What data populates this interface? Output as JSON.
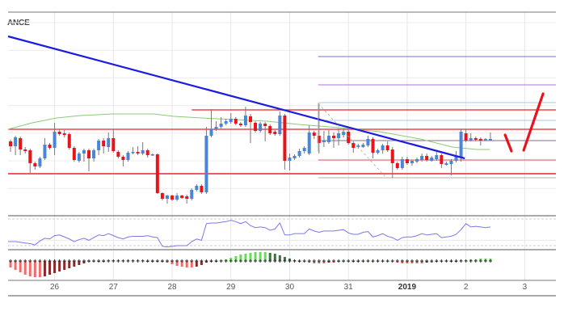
{
  "chart_data": {
    "type": "candlestick",
    "title": "ANCE",
    "grid": true,
    "candle_start": "2018-12-25 06:00",
    "candle_interval_hours": 2,
    "xlim": [
      "2018-12-25 05:00",
      "2019-01-03 12:45"
    ],
    "ylim": [
      35,
      285
    ],
    "colors": {
      "up": "#4a86d8",
      "down": "#e8141b",
      "wick": "#7a7a7a",
      "trendline": "#1c1cdc",
      "level": "#e8242a",
      "ma": "#8cc97a",
      "rsi": "#7b78e8",
      "macd_up_rising": "#66dd55",
      "macd_up_falling": "#2f7d2f",
      "macd_down_falling": "#f26b6b",
      "macd_down_rising": "#8b2a2a"
    },
    "x_ticks": [
      {
        "label": "26",
        "date": "2018-12-26 00:00",
        "bold": false
      },
      {
        "label": "27",
        "date": "2018-12-27 00:00",
        "bold": false
      },
      {
        "label": "28",
        "date": "2018-12-28 00:00",
        "bold": false
      },
      {
        "label": "29",
        "date": "2018-12-29 00:00",
        "bold": false
      },
      {
        "label": "30",
        "date": "2018-12-30 00:00",
        "bold": false
      },
      {
        "label": "31",
        "date": "2018-12-31 00:00",
        "bold": false
      },
      {
        "label": "2019",
        "date": "2019-01-01 00:00",
        "bold": true
      },
      {
        "label": "2",
        "date": "2019-01-02 00:00",
        "bold": false
      },
      {
        "label": "3",
        "date": "2019-01-03 00:00",
        "bold": false
      }
    ],
    "candles_ohlc": [
      [
        125,
        127,
        112,
        119
      ],
      [
        119,
        132,
        108,
        130
      ],
      [
        129,
        131,
        108,
        115
      ],
      [
        115,
        118,
        110,
        113
      ],
      [
        114,
        116,
        85,
        98
      ],
      [
        98,
        100,
        90,
        94
      ],
      [
        94,
        106,
        92,
        104
      ],
      [
        104,
        129,
        102,
        121
      ],
      [
        121,
        123,
        115,
        117
      ],
      [
        117,
        148,
        108,
        137
      ],
      [
        137,
        140,
        132,
        134
      ],
      [
        135,
        139,
        130,
        133
      ],
      [
        134,
        136,
        115,
        117
      ],
      [
        117,
        119,
        100,
        102
      ],
      [
        101,
        112,
        99,
        110
      ],
      [
        110,
        116,
        100,
        114
      ],
      [
        114,
        116,
        88,
        104
      ],
      [
        104,
        116,
        100,
        114
      ],
      [
        114,
        128,
        108,
        126
      ],
      [
        126,
        129,
        110,
        119
      ],
      [
        118,
        136,
        112,
        129
      ],
      [
        129,
        140,
        111,
        113
      ],
      [
        112,
        114,
        104,
        106
      ],
      [
        106,
        108,
        94,
        102
      ],
      [
        102,
        113,
        100,
        111
      ],
      [
        111,
        118,
        109,
        112
      ],
      [
        112,
        119,
        108,
        110
      ],
      [
        110,
        124,
        108,
        114
      ],
      [
        114,
        116,
        105,
        108
      ],
      [
        108,
        110,
        107,
        109
      ],
      [
        109,
        110,
        60,
        61
      ],
      [
        61,
        62,
        52,
        54
      ],
      [
        54,
        59,
        48,
        58
      ],
      [
        58,
        59,
        51,
        53
      ],
      [
        53,
        61,
        51,
        58
      ],
      [
        58,
        59,
        54,
        55
      ],
      [
        57,
        59,
        48,
        54
      ],
      [
        54,
        67,
        52,
        65
      ],
      [
        65,
        72,
        63,
        70
      ],
      [
        70,
        72,
        60,
        62
      ],
      [
        62,
        143,
        60,
        132
      ],
      [
        132,
        165,
        130,
        140
      ],
      [
        140,
        150,
        138,
        143
      ],
      [
        143,
        155,
        141,
        147
      ],
      [
        147,
        153,
        145,
        150
      ],
      [
        149,
        160,
        147,
        153
      ],
      [
        153,
        155,
        145,
        147
      ],
      [
        147,
        149,
        143,
        145
      ],
      [
        145,
        168,
        143,
        157
      ],
      [
        156,
        159,
        123,
        149
      ],
      [
        148,
        150,
        136,
        138
      ],
      [
        138,
        149,
        136,
        147
      ],
      [
        147,
        149,
        125,
        144
      ],
      [
        144,
        146,
        133,
        135
      ],
      [
        137,
        139,
        132,
        134
      ],
      [
        134,
        162,
        132,
        157
      ],
      [
        157,
        159,
        90,
        101
      ],
      [
        101,
        110,
        89,
        105
      ],
      [
        104,
        109,
        102,
        107
      ],
      [
        107,
        116,
        105,
        113
      ],
      [
        113,
        119,
        110,
        117
      ],
      [
        110,
        145,
        108,
        136
      ],
      [
        136,
        138,
        128,
        132
      ],
      [
        132,
        172,
        110,
        123
      ],
      [
        124,
        138,
        118,
        126
      ],
      [
        124,
        139,
        122,
        132
      ],
      [
        132,
        136,
        117,
        129
      ],
      [
        129,
        141,
        120,
        135
      ],
      [
        133,
        140,
        130,
        137
      ],
      [
        137,
        140,
        121,
        123
      ],
      [
        123,
        125,
        111,
        117
      ],
      [
        118,
        122,
        116,
        120
      ],
      [
        118,
        123,
        117,
        121
      ],
      [
        120,
        132,
        118,
        128
      ],
      [
        128,
        130,
        104,
        111
      ],
      [
        111,
        116,
        109,
        114
      ],
      [
        114,
        122,
        110,
        120
      ],
      [
        120,
        125,
        112,
        114
      ],
      [
        115,
        118,
        80,
        98
      ],
      [
        98,
        100,
        90,
        92
      ],
      [
        92,
        106,
        90,
        103
      ],
      [
        103,
        106,
        96,
        98
      ],
      [
        98,
        102,
        95,
        101
      ],
      [
        100,
        105,
        98,
        103
      ],
      [
        102,
        110,
        100,
        107
      ],
      [
        107,
        110,
        100,
        102
      ],
      [
        101,
        107,
        100,
        105
      ],
      [
        103,
        112,
        101,
        108
      ],
      [
        108,
        110,
        92,
        97
      ],
      [
        96,
        100,
        95,
        98
      ],
      [
        97,
        103,
        83,
        101
      ],
      [
        101,
        113,
        99,
        106
      ],
      [
        105,
        140,
        100,
        137
      ],
      [
        135,
        140,
        124,
        126
      ],
      [
        126,
        135,
        125,
        129
      ],
      [
        129,
        131,
        125,
        127
      ],
      [
        128,
        130,
        120,
        126
      ],
      [
        127,
        129,
        126,
        128
      ],
      [
        127,
        136,
        126,
        128
      ]
    ],
    "moving_average": [
      [
        "2018-12-25 05:00",
        140
      ],
      [
        "2018-12-25 14:54",
        148
      ],
      [
        "2018-12-26 00:48",
        154
      ],
      [
        "2018-12-26 10:42",
        157
      ],
      [
        "2018-12-26 23:54",
        159
      ],
      [
        "2018-12-27 16:24",
        159
      ],
      [
        "2018-12-28 00:42",
        156
      ],
      [
        "2018-12-28 12:12",
        154
      ],
      [
        "2018-12-29 01:24",
        152
      ],
      [
        "2018-12-29 14:36",
        150
      ],
      [
        "2018-12-30 03:48",
        146
      ],
      [
        "2018-12-30 20:18",
        142
      ],
      [
        "2018-12-31 12:48",
        137
      ],
      [
        "2019-01-01 05:18",
        128
      ],
      [
        "2019-01-01 18:30",
        118
      ],
      [
        "2019-01-02 04:24",
        115
      ],
      [
        "2019-01-02 09:42",
        115
      ]
    ],
    "trendlines": [
      {
        "from": [
          "2018-12-25 05:00",
          255
        ],
        "to": [
          "2019-01-01 23:30",
          104
        ],
        "color": "#1c1cdc",
        "style": "solid",
        "weight": "heavy"
      },
      {
        "from": [
          "2018-12-30 11:40",
          172
        ],
        "to": [
          "2018-12-31 14:50",
          82
        ],
        "color": "#aaaaaa",
        "style": "dashed",
        "weight": "thin"
      },
      {
        "from": [
          "2018-12-30 11:40",
          172
        ],
        "to": [
          "2018-12-30 11:40",
          112
        ],
        "color": "#aaaaaa",
        "style": "solid",
        "weight": "thin"
      },
      {
        "from": [
          "2019-01-02 16:00",
          133
        ],
        "to": [
          "2019-01-02 18:35",
          113
        ],
        "color": "#e8141b",
        "style": "solid",
        "weight": "marker"
      },
      {
        "from": [
          "2019-01-02 23:35",
          114
        ],
        "to": [
          "2019-01-03 07:30",
          184
        ],
        "color": "#e8141b",
        "style": "solid",
        "weight": "marker"
      }
    ],
    "horizontal_levels": [
      {
        "price": 140,
        "from": "2018-12-25 05:00",
        "color": "#e8242a",
        "weight": "medium"
      },
      {
        "price": 85,
        "from": "2018-12-25 05:00",
        "color": "#f05a5e",
        "weight": "heavy"
      },
      {
        "price": 164,
        "from": "2018-12-28 08:00",
        "color": "#e8242a",
        "weight": "medium"
      },
      {
        "price": 102,
        "from": "2018-12-30 11:40",
        "color": "#e8545a",
        "weight": "thin"
      },
      {
        "price": 126,
        "from": "2018-12-30 11:40",
        "color": "#8a6a8a",
        "weight": "thin"
      },
      {
        "price": 230,
        "from": "2018-12-30 11:40",
        "color": "#7070e0",
        "weight": "thin"
      },
      {
        "price": 195,
        "from": "2018-12-30 11:40",
        "color": "#b070e0",
        "weight": "thin"
      },
      {
        "price": 173,
        "from": "2018-12-30 11:40",
        "color": "#a8c8e0",
        "weight": "thin"
      },
      {
        "price": 151,
        "from": "2018-12-30 11:40",
        "color": "#a8c8e0",
        "weight": "thin"
      },
      {
        "price": 80,
        "from": "2018-12-30 11:40",
        "color": "#b0b0b0",
        "weight": "thin"
      }
    ],
    "rsi": {
      "bands": [
        30,
        70
      ],
      "values": [
        36,
        36,
        35,
        34,
        33,
        31,
        37,
        41,
        40,
        45,
        46,
        43,
        40,
        36,
        39,
        41,
        38,
        42,
        46,
        45,
        48,
        45,
        42,
        40,
        43,
        44,
        44,
        44,
        45,
        43,
        42,
        29,
        28,
        29,
        30,
        30,
        30,
        36,
        40,
        38,
        63,
        64,
        64,
        65,
        66,
        68,
        66,
        63,
        66,
        60,
        57,
        58,
        57,
        53,
        55,
        64,
        46,
        46,
        48,
        48,
        48,
        55,
        52,
        50,
        52,
        52,
        52,
        53,
        54,
        49,
        47,
        47,
        50,
        51,
        43,
        45,
        48,
        44,
        42,
        38,
        42,
        43,
        43,
        45,
        48,
        46,
        47,
        48,
        42,
        43,
        44,
        47,
        54,
        63,
        58,
        59,
        58,
        57,
        58
      ]
    },
    "macd_histogram": [
      -8,
      -11,
      -14,
      -17,
      -19,
      -20,
      -20,
      -19,
      -17,
      -15,
      -13,
      -11,
      -9,
      -7,
      -5,
      -3,
      -1,
      -1,
      0,
      0,
      1,
      1,
      1,
      1,
      1,
      1,
      1,
      1,
      0,
      0,
      0,
      0,
      -2,
      -4,
      -6,
      -7,
      -8,
      -8,
      -7,
      -5,
      -2,
      -1,
      0,
      1,
      2,
      4,
      6,
      8,
      9,
      10,
      11,
      11,
      11,
      10,
      9,
      7,
      5,
      3,
      1,
      0,
      -1,
      -2,
      -3,
      -3,
      -3,
      -2,
      -2,
      -1,
      -1,
      -1,
      0,
      0,
      -1,
      -1,
      -1,
      -1,
      -1,
      -1,
      -1,
      -2,
      -3,
      -3,
      -3,
      -3,
      -3,
      -2,
      -2,
      -1,
      -1,
      -1,
      0,
      0,
      1,
      1,
      2,
      2,
      3,
      3,
      3
    ]
  }
}
